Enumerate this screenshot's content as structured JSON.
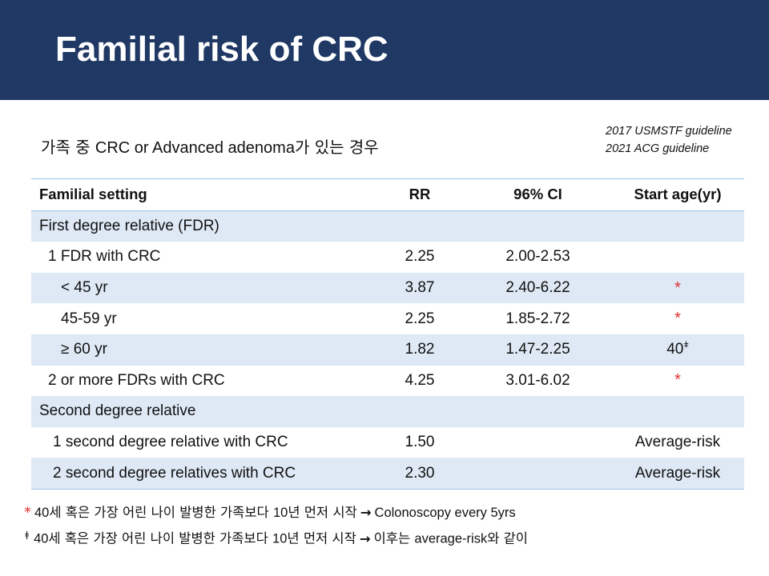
{
  "title": "Familial risk of CRC",
  "subtitle": {
    "prefix_ko": "가족 중 ",
    "middle": "CRC or Advanced adenoma",
    "suffix_ko": "가 있는 경우"
  },
  "guidelines": [
    "2017 USMSTF guideline",
    "2021 ACG guideline"
  ],
  "table": {
    "headers": [
      "Familial setting",
      "RR",
      "96% CI",
      "Start age(yr)"
    ],
    "rows": [
      {
        "setting": "First degree relative (FDR)",
        "rr": "",
        "ci": "",
        "start": ""
      },
      {
        "setting": "1 FDR with CRC",
        "rr": "2.25",
        "ci": "2.00-2.53",
        "start": ""
      },
      {
        "setting": "< 45 yr",
        "rr": "3.87",
        "ci": "2.40-6.22",
        "start": "*"
      },
      {
        "setting": "45-59 yr",
        "rr": "2.25",
        "ci": "1.85-2.72",
        "start": "*"
      },
      {
        "setting": "≥ 60 yr",
        "rr": "1.82",
        "ci": "1.47-2.25",
        "start": "40",
        "start_mark": "ǂ"
      },
      {
        "setting": "2 or more FDRs with CRC",
        "rr": "4.25",
        "ci": "3.01-6.02",
        "start": "*"
      },
      {
        "setting": "Second degree relative",
        "rr": "",
        "ci": "",
        "start": ""
      },
      {
        "setting": "1 second degree relative with CRC",
        "rr": "1.50",
        "ci": "",
        "start": "Average-risk"
      },
      {
        "setting": "2 second degree relatives with CRC",
        "rr": "2.30",
        "ci": "",
        "start": "Average-risk"
      }
    ]
  },
  "footnotes": [
    {
      "mark": "*",
      "ko_num": "40",
      "ko_text": "세 혹은 가장 어린 나이 발병한 가족보다 ",
      "ko_num2": "10",
      "ko_text2": "년 먼저 시작",
      "arrow": "→",
      "tail": "Colonoscopy every 5yrs",
      "tail_ko": ""
    },
    {
      "mark": "ǂ",
      "ko_num": "40",
      "ko_text": "세 혹은 가장 어린 나이 발병한 가족보다 ",
      "ko_num2": "10",
      "ko_text2": "년 먼저 시작",
      "arrow": "→",
      "tail": "이후는 ",
      "tail_en": "average-risk",
      "tail_ko": "와 같이"
    }
  ],
  "colors": {
    "title_bar": "#1f3864",
    "row_shade": "#dee9f5",
    "rule": "#9dc3e6",
    "star": "#e03030"
  }
}
